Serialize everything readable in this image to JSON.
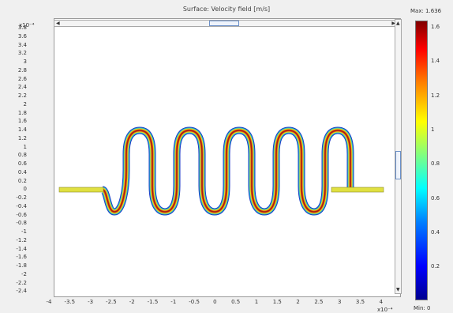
{
  "title": "Surface: Velocity field [m/s]",
  "y_exponent": "x10⁻⁴",
  "x_exponent": "x10⁻⁴",
  "y_ticks": [
    "3.8",
    "3.6",
    "3.4",
    "3.2",
    "3",
    "2.8",
    "2.6",
    "2.4",
    "2.2",
    "2",
    "1.8",
    "1.6",
    "1.4",
    "1.2",
    "1",
    "0.8",
    "0.6",
    "0.4",
    "0.2",
    "0",
    "-0.2",
    "-0.4",
    "-0.6",
    "-0.8",
    "-1",
    "-1.2",
    "-1.4",
    "-1.6",
    "-1.8",
    "-2",
    "-2.2",
    "-2.4"
  ],
  "x_ticks": [
    "-4",
    "-3.5",
    "-3",
    "-2.5",
    "-2",
    "-1.5",
    "-1",
    "-0.5",
    "0",
    "0.5",
    "1",
    "1.5",
    "2",
    "2.5",
    "3",
    "3.5",
    "4"
  ],
  "colorbar": {
    "max_label": "Max: 1.636",
    "min_label": "Min: 0",
    "ticks": [
      "1.6",
      "1.4",
      "1.2",
      "1",
      "0.8",
      "0.6",
      "0.4",
      "0.2"
    ]
  },
  "colors": {
    "channel_outer": "#1a3cc8",
    "channel_mid": "#e8e020",
    "channel_core": "#b42818",
    "inlet": "#e0e040"
  },
  "icons": {
    "scroll_left": "arrow-left-icon",
    "scroll_right": "arrow-right-icon",
    "scroll_up": "arrow-up-icon",
    "scroll_down": "arrow-down-icon"
  }
}
